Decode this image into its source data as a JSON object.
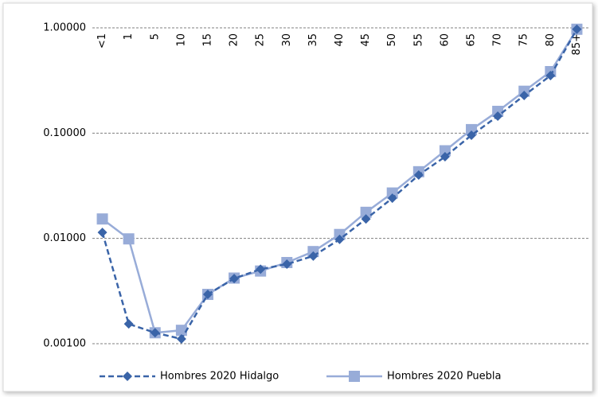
{
  "chart_data": {
    "type": "line",
    "log_scale": true,
    "grid": true,
    "legend": "bottom",
    "categories": [
      "<1",
      "1",
      "5",
      "10",
      "15",
      "20",
      "25",
      "30",
      "35",
      "40",
      "45",
      "50",
      "55",
      "60",
      "65",
      "70",
      "75",
      "80",
      "85+"
    ],
    "series": [
      {
        "name": "Hombres 2020 Hidalgo",
        "color": "#3a64a8",
        "dashed": true,
        "marker": "diamond",
        "values": [
          0.0114,
          0.00154,
          0.00127,
          0.00111,
          0.00294,
          0.00416,
          0.0051,
          0.0057,
          0.0068,
          0.0098,
          0.0153,
          0.0241,
          0.04,
          0.0597,
          0.0955,
          0.145,
          0.228,
          0.352,
          0.97
        ]
      },
      {
        "name": "Hombres 2020 Puebla",
        "color": "#98acd8",
        "dashed": false,
        "marker": "square",
        "values": [
          0.0153,
          0.0099,
          0.00127,
          0.00134,
          0.00294,
          0.0042,
          0.0049,
          0.0059,
          0.0075,
          0.0109,
          0.0177,
          0.027,
          0.043,
          0.068,
          0.108,
          0.161,
          0.25,
          0.384,
          0.97
        ]
      }
    ],
    "ylim": [
      0.001,
      1
    ],
    "yticks": [
      {
        "value": 0.001,
        "label": "0.00100"
      },
      {
        "value": 0.01,
        "label": "0.01000"
      },
      {
        "value": 0.1,
        "label": "0.10000"
      },
      {
        "value": 1,
        "label": "1.00000"
      }
    ]
  }
}
